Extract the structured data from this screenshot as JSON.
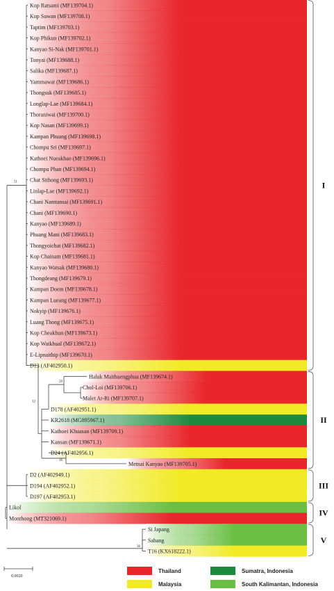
{
  "colors": {
    "thailand": "#e8262b",
    "malaysia": "#f1ea24",
    "sumatra": "#1e8a3e",
    "kalimantan": "#6bbf45"
  },
  "scale_bar": {
    "label": "0.0020"
  },
  "legend": [
    {
      "key": "thailand",
      "label": "Thailand"
    },
    {
      "key": "sumatra",
      "label": "Sumatra, Indonesia"
    },
    {
      "key": "malaysia",
      "label": "Malaysia"
    },
    {
      "key": "kalimantan",
      "label": "South Kalimantan, Indonesia"
    }
  ],
  "leaves": [
    {
      "label": "Kop Ratsami (MF139704.1)",
      "color": "thailand"
    },
    {
      "label": "Kop Suwan (MF139708.1)",
      "color": "thailand"
    },
    {
      "label": "Taptim (MF139703.1)",
      "color": "thailand"
    },
    {
      "label": "Kop Phikun (MF139702.1)",
      "color": "thailand"
    },
    {
      "label": "Kanyao Si-Nak (MF139701.1)",
      "color": "thailand"
    },
    {
      "label": "Tonyai (MF139688.1)",
      "color": "thailand"
    },
    {
      "label": "Salika (MF139687.1)",
      "color": "thailand"
    },
    {
      "label": "Yammawat (MF139686.1)",
      "color": "thailand"
    },
    {
      "label": "Thongsuk (MF139685.1)",
      "color": "thailand"
    },
    {
      "label": "Longlap-Lae (MF139684.1)",
      "color": "thailand"
    },
    {
      "label": "Thoraniwai (MF139700.1)",
      "color": "thailand"
    },
    {
      "label": "Kop Nasan (MF139699.1)",
      "color": "thailand"
    },
    {
      "label": "Kampan Phuang (MF139698.1)",
      "color": "thailand"
    },
    {
      "label": "Chompu Sri (MF139697.1)",
      "color": "thailand"
    },
    {
      "label": "Kathoei Nueakhao (MF139696.1)",
      "color": "thailand"
    },
    {
      "label": "Chompu Phan (MF139694.1)",
      "color": "thailand"
    },
    {
      "label": "Chat Sithong (MF139693.1)",
      "color": "thailand"
    },
    {
      "label": "Linlap-Lae (MF139692.1)",
      "color": "thailand"
    },
    {
      "label": "Chani Namtansai (MF139691.1)",
      "color": "thailand"
    },
    {
      "label": "Chani (MF139690.1)",
      "color": "thailand"
    },
    {
      "label": "Kanyao (MF139689.1)",
      "color": "thailand"
    },
    {
      "label": "Phuang Mani (MF139683.1)",
      "color": "thailand"
    },
    {
      "label": "Thongyoichat (MF139682.1)",
      "color": "thailand"
    },
    {
      "label": "Kop Chainam (MF139681.1)",
      "color": "thailand"
    },
    {
      "label": "Kanyao Watsak (MF139680.1)",
      "color": "thailand"
    },
    {
      "label": "Thongdeang (MF139679.1)",
      "color": "thailand"
    },
    {
      "label": "Kampan Doem (MF139678.1)",
      "color": "thailand"
    },
    {
      "label": "Kampan Lueang (MF139677.1)",
      "color": "thailand"
    },
    {
      "label": "Nokyip (MF139676.1)",
      "color": "thailand"
    },
    {
      "label": "Luang Thong (MF139675.1)",
      "color": "thailand"
    },
    {
      "label": "Kop Cheakhun (MF139673.1)",
      "color": "thailand"
    },
    {
      "label": "Kop Watkhual (MF139672.1)",
      "color": "thailand"
    },
    {
      "label": "E-Lipnaithip (MF139670.1)",
      "color": "thailand"
    },
    {
      "label": "D13 (AF402950.1)",
      "color": "malaysia"
    },
    {
      "label": "Haluk Maithuengphua (MF139674.1)",
      "color": "thailand"
    },
    {
      "label": "Chol-Loi (MF139706.1)",
      "color": "thailand"
    },
    {
      "label": "Malet Ar-Ri (MF139707.1)",
      "color": "thailand"
    },
    {
      "label": "D178 (AF402951.1)",
      "color": "malaysia"
    },
    {
      "label": "KR2618 (MG895967.1)",
      "color": "sumatra"
    },
    {
      "label": "Kathoei Khuasan (MF139709.1)",
      "color": "thailand"
    },
    {
      "label": "Kansan (MF139671.1)",
      "color": "thailand"
    },
    {
      "label": "D24 (AF402956.1)",
      "color": "malaysia"
    },
    {
      "label": "Metnai Kanyao (MF139705.1)",
      "color": "thailand"
    },
    {
      "label": "D2 (AF402949.1)",
      "color": "malaysia"
    },
    {
      "label": "D194 (AF402952.1)",
      "color": "malaysia"
    },
    {
      "label": "D197 (AF402953.1)",
      "color": "malaysia"
    },
    {
      "label": "Likol",
      "color": "kalimantan"
    },
    {
      "label": "Monthong (MT321069.1)",
      "color": "thailand"
    },
    {
      "label": "Si Japang",
      "color": "kalimantan"
    },
    {
      "label": "Sahang",
      "color": "kalimantan"
    },
    {
      "label": "T16 (KX618222.1)",
      "color": "malaysia"
    }
  ],
  "bootstrap": [
    "51",
    "59",
    "12",
    "16",
    "36"
  ],
  "clades": [
    {
      "label": "I",
      "first_leaf": 0,
      "last_leaf": 33
    },
    {
      "label": "II",
      "first_leaf": 34,
      "last_leaf": 42
    },
    {
      "label": "III",
      "first_leaf": 43,
      "last_leaf": 45
    },
    {
      "label": "IV",
      "first_leaf": 46,
      "last_leaf": 47
    },
    {
      "label": "V",
      "first_leaf": 48,
      "last_leaf": 50
    }
  ]
}
